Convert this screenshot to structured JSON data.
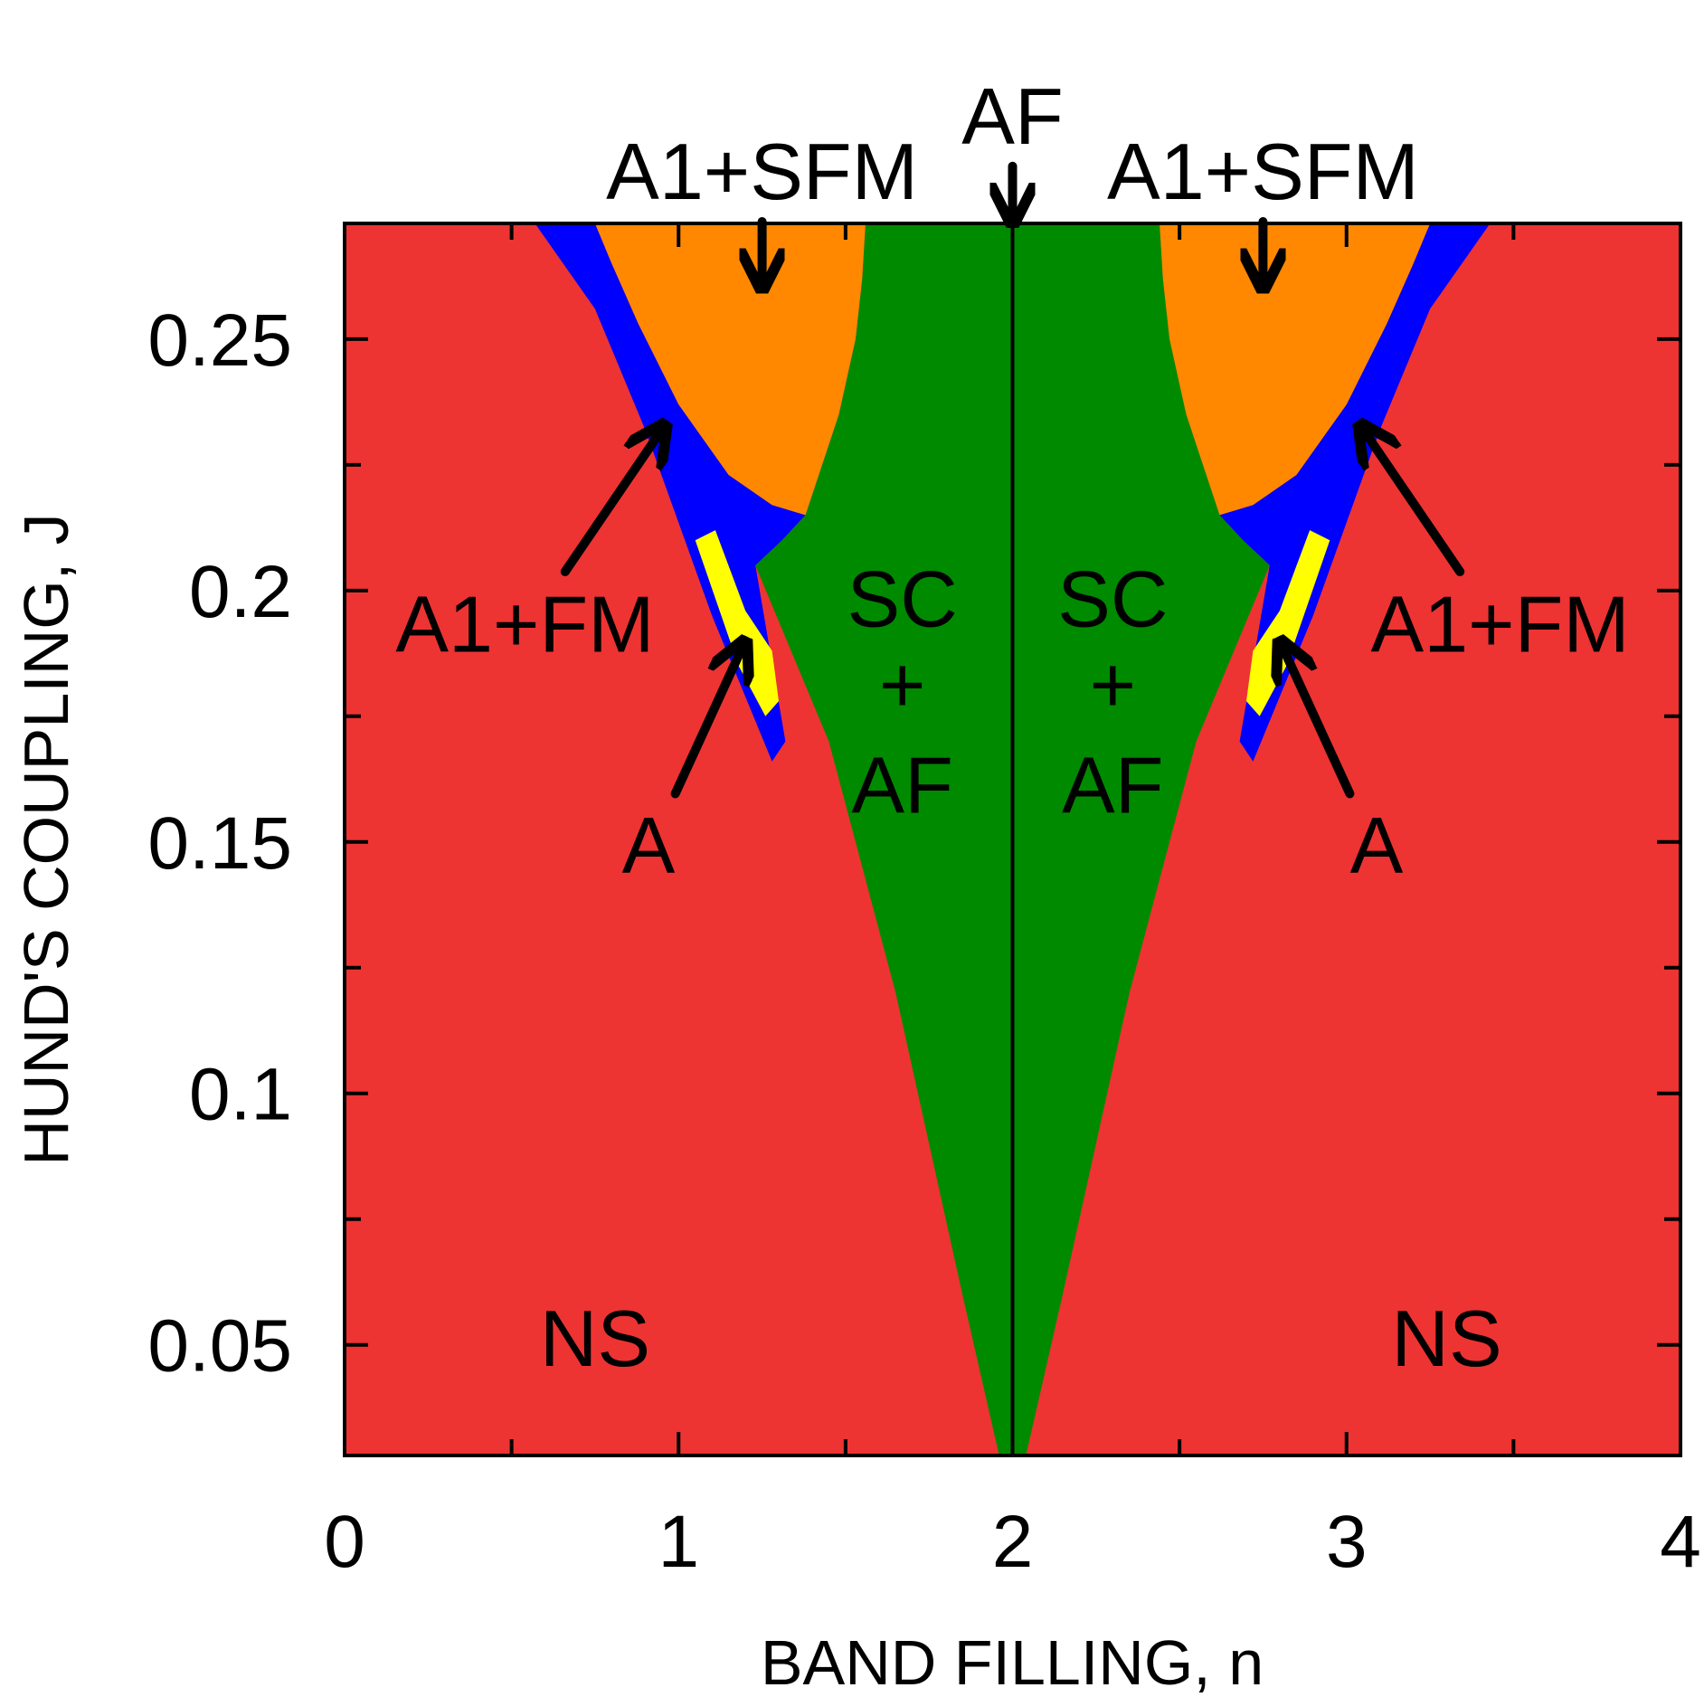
{
  "chart_data": {
    "type": "heatmap",
    "xlabel": "BAND FILLING, n",
    "ylabel": "HUND'S COUPLING, J",
    "xlim": [
      0,
      4
    ],
    "ylim": [
      0.028,
      0.273
    ],
    "x_ticks": [
      0,
      1,
      2,
      3,
      4
    ],
    "x_tick_labels": [
      "0",
      "1",
      "2",
      "3",
      "4"
    ],
    "y_ticks": [
      0.05,
      0.1,
      0.15,
      0.2,
      0.25
    ],
    "y_tick_labels": [
      "0.05",
      "0.1",
      "0.15",
      "0.2",
      "0.25"
    ],
    "y_minor_ticks": [
      0.075,
      0.125,
      0.175,
      0.225
    ],
    "x_minor_ticks": [
      0.5,
      1.5,
      2.5,
      3.5
    ],
    "grid": false,
    "colors": {
      "NS": "#ee3333",
      "SC+AF": "#008a00",
      "A1+FM": "#0000ff",
      "A1+SFM": "#ff8800",
      "A": "#ffff00"
    },
    "phase_boundaries_left_half": {
      "sc_af_region": [
        [
          2.0,
          0.028
        ],
        [
          1.96,
          0.028
        ],
        [
          1.85,
          0.06
        ],
        [
          1.65,
          0.12
        ],
        [
          1.45,
          0.17
        ],
        [
          1.23,
          0.205
        ],
        [
          1.31,
          0.21
        ],
        [
          1.38,
          0.215
        ],
        [
          1.48,
          0.235
        ],
        [
          1.53,
          0.25
        ],
        [
          1.55,
          0.262
        ],
        [
          1.56,
          0.273
        ],
        [
          2.0,
          0.273
        ]
      ],
      "a1_sfm_region": [
        [
          0.75,
          0.273
        ],
        [
          1.56,
          0.273
        ],
        [
          1.55,
          0.262
        ],
        [
          1.53,
          0.25
        ],
        [
          1.48,
          0.235
        ],
        [
          1.38,
          0.215
        ],
        [
          1.28,
          0.217
        ],
        [
          1.15,
          0.223
        ],
        [
          1.0,
          0.237
        ],
        [
          0.88,
          0.253
        ],
        [
          0.8,
          0.265
        ]
      ],
      "a1_fm_region": [
        [
          0.57,
          0.273
        ],
        [
          0.75,
          0.273
        ],
        [
          0.8,
          0.265
        ],
        [
          0.88,
          0.253
        ],
        [
          1.0,
          0.237
        ],
        [
          1.15,
          0.223
        ],
        [
          1.28,
          0.217
        ],
        [
          1.38,
          0.215
        ],
        [
          1.31,
          0.21
        ],
        [
          1.23,
          0.205
        ],
        [
          1.32,
          0.17
        ],
        [
          1.28,
          0.166
        ],
        [
          1.1,
          0.195
        ],
        [
          0.9,
          0.232
        ],
        [
          0.75,
          0.256
        ]
      ],
      "a_region": [
        [
          1.05,
          0.21
        ],
        [
          1.11,
          0.212
        ],
        [
          1.2,
          0.196
        ],
        [
          1.28,
          0.188
        ],
        [
          1.3,
          0.178
        ],
        [
          1.26,
          0.175
        ],
        [
          1.18,
          0.185
        ]
      ]
    },
    "region_labels": [
      {
        "text": "NS",
        "x": 0.75,
        "y": 0.05
      },
      {
        "text": "NS",
        "x": 3.3,
        "y": 0.05
      },
      {
        "text": "SC",
        "x": 1.67,
        "y": 0.197
      },
      {
        "text": "+",
        "x": 1.67,
        "y": 0.18
      },
      {
        "text": "AF",
        "x": 1.67,
        "y": 0.16
      },
      {
        "text": "SC",
        "x": 2.3,
        "y": 0.197
      },
      {
        "text": "+",
        "x": 2.3,
        "y": 0.18
      },
      {
        "text": "AF",
        "x": 2.3,
        "y": 0.16
      }
    ],
    "annotations": [
      {
        "text": "AF",
        "x": 2.0,
        "y": 0.293,
        "arrow_to": [
          2.0,
          0.273
        ]
      },
      {
        "text": "A1+SFM",
        "x": 1.25,
        "y": 0.282,
        "arrow_to": [
          1.25,
          0.26
        ]
      },
      {
        "text": "A1+SFM",
        "x": 2.75,
        "y": 0.282,
        "arrow_to": [
          2.75,
          0.26
        ]
      },
      {
        "text": "A1+FM",
        "x": 0.54,
        "y": 0.192,
        "arrow_to": [
          0.96,
          0.233
        ]
      },
      {
        "text": "A1+FM",
        "x": 3.46,
        "y": 0.192,
        "arrow_to": [
          3.04,
          0.233
        ]
      },
      {
        "text": "A",
        "x": 0.91,
        "y": 0.148,
        "arrow_to": [
          1.2,
          0.19
        ]
      },
      {
        "text": "A",
        "x": 3.09,
        "y": 0.148,
        "arrow_to": [
          2.8,
          0.19
        ]
      }
    ]
  }
}
